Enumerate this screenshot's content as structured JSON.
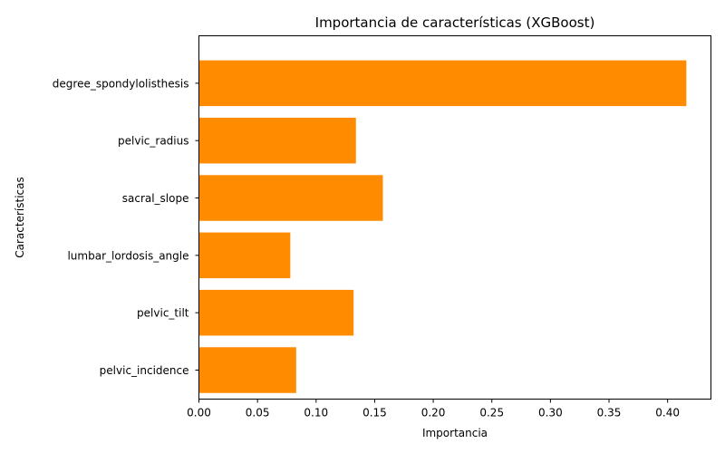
{
  "chart_data": {
    "type": "bar",
    "orientation": "horizontal",
    "title": "Importancia de características (XGBoost)",
    "xlabel": "Importancia",
    "ylabel": "Características",
    "categories": [
      "pelvic_incidence",
      "pelvic_tilt",
      "lumbar_lordosis_angle",
      "sacral_slope",
      "pelvic_radius",
      "degree_spondylolisthesis"
    ],
    "values": [
      0.083,
      0.132,
      0.078,
      0.157,
      0.134,
      0.416
    ],
    "xlim": [
      0,
      0.437
    ],
    "xticks": [
      "0.00",
      "0.05",
      "0.10",
      "0.15",
      "0.20",
      "0.25",
      "0.30",
      "0.35",
      "0.40"
    ],
    "bar_color": "#ff8c00",
    "grid": false,
    "legend": "none"
  }
}
